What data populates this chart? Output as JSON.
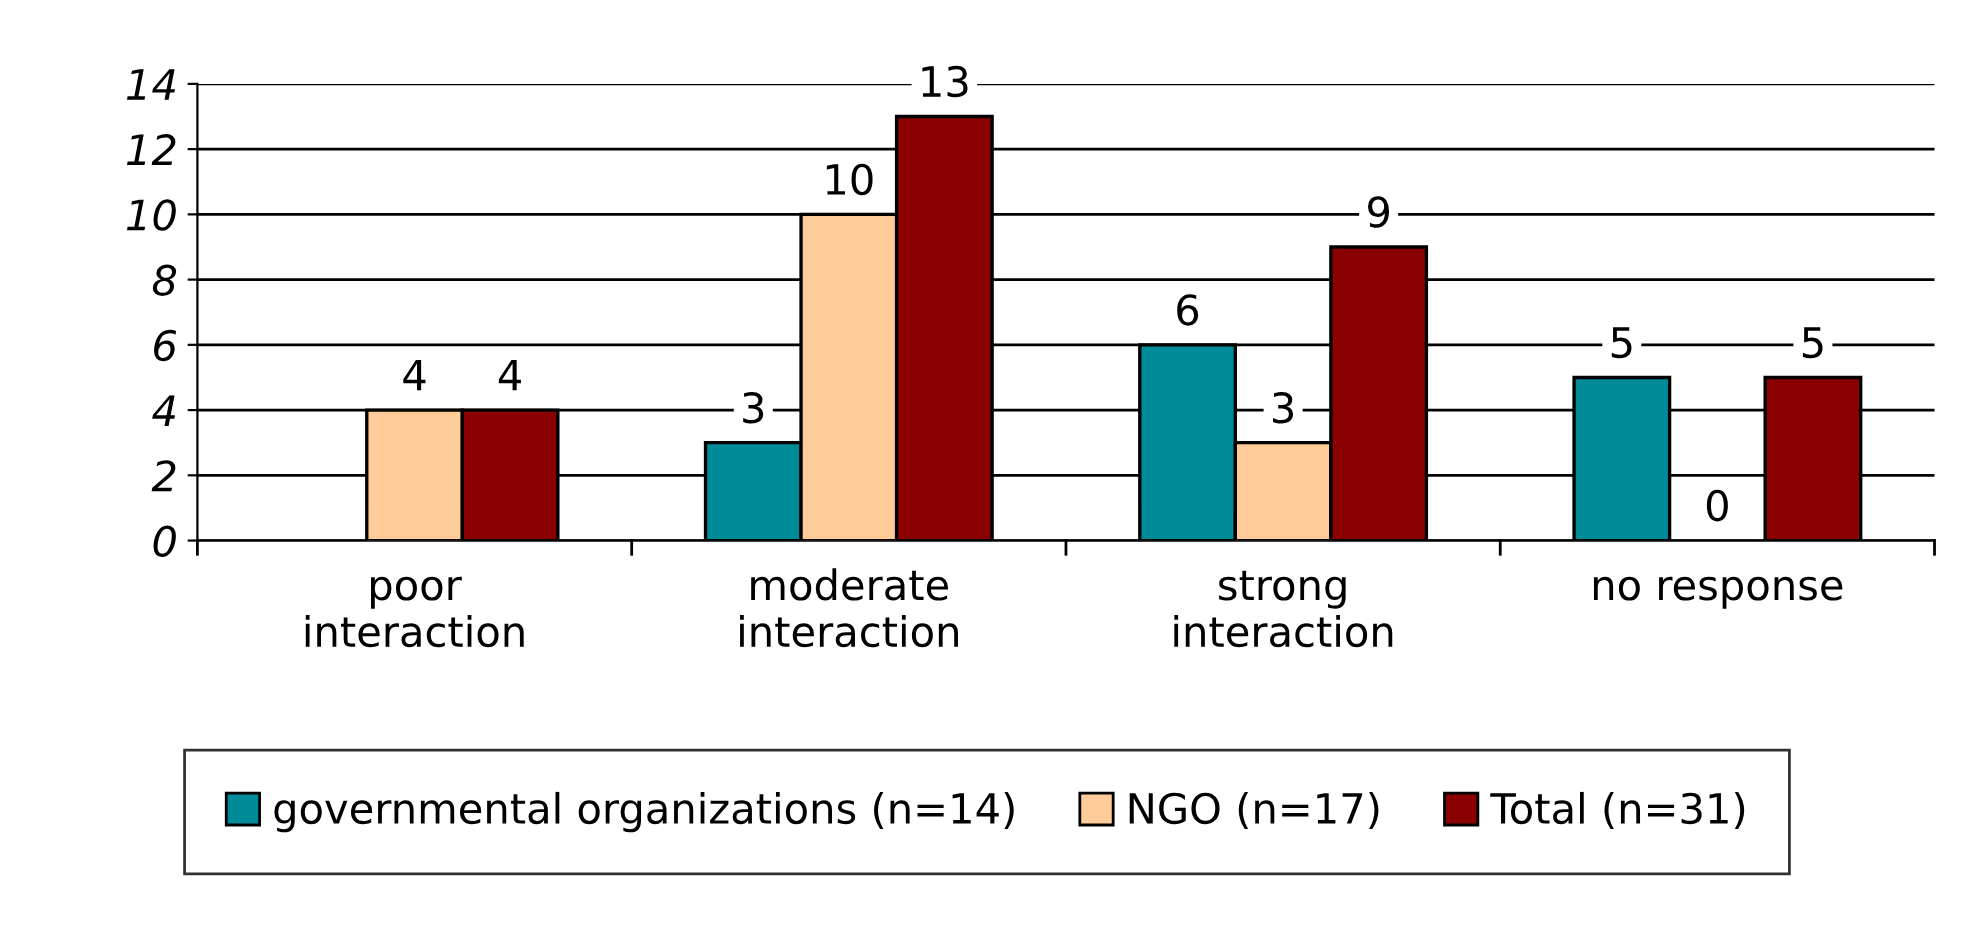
{
  "chart_data": {
    "type": "bar",
    "categories": [
      "poor\ninteraction",
      "moderate\ninteraction",
      "strong\ninteraction",
      "no response"
    ],
    "series": [
      {
        "name": "governmental organizations (n=14)",
        "color": "#008b99",
        "values": [
          0,
          3,
          6,
          5
        ],
        "value_labels": [
          null,
          "3",
          "6",
          "5"
        ]
      },
      {
        "name": "NGO (n=17)",
        "color": "#ffcc99",
        "values": [
          4,
          10,
          3,
          0
        ],
        "value_labels": [
          "4",
          "10",
          "3",
          "0"
        ]
      },
      {
        "name": "Total (n=31)",
        "color": "#8b0000",
        "values": [
          4,
          13,
          9,
          5
        ],
        "value_labels": [
          "4",
          "13",
          "9",
          "5"
        ]
      }
    ],
    "ylim": [
      0,
      14
    ],
    "yticks": [
      0,
      2,
      4,
      6,
      8,
      10,
      12,
      14
    ],
    "grid": "y",
    "legend": "bottom"
  }
}
